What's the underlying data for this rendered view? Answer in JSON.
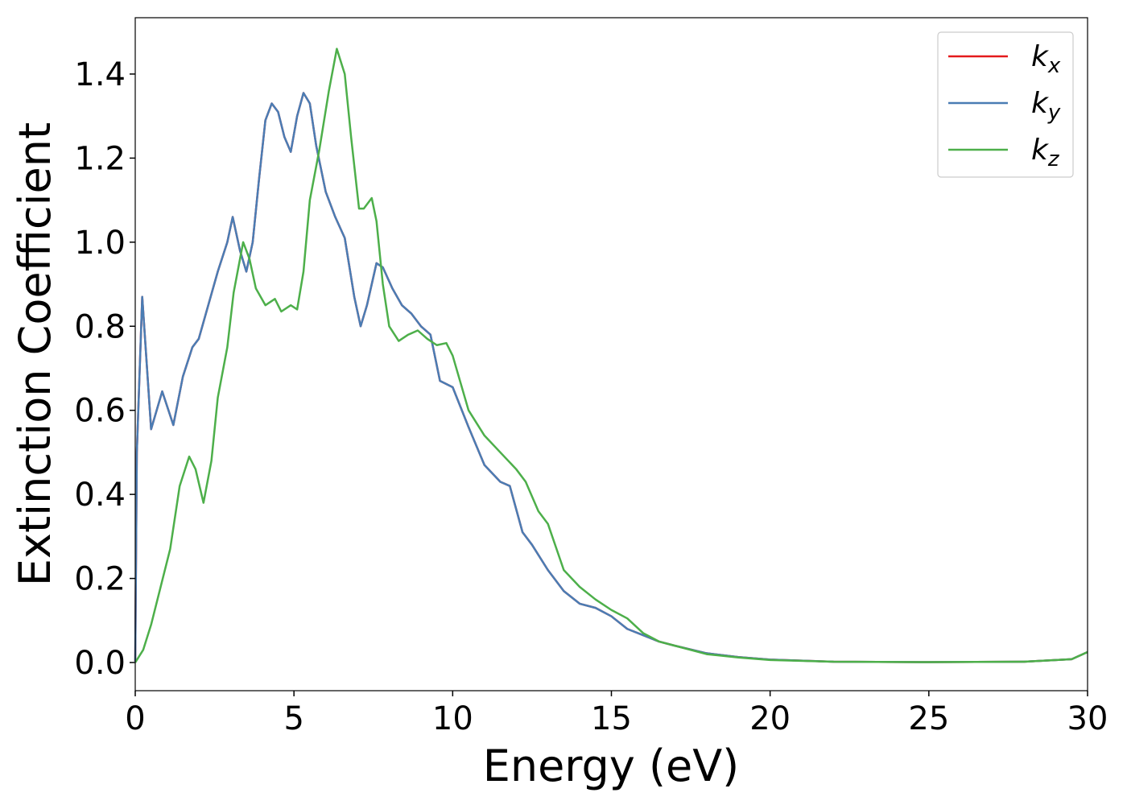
{
  "chart_data": {
    "type": "line",
    "xlabel": "Energy (eV)",
    "ylabel": "Extinction Coefficient",
    "xlim": [
      0,
      30
    ],
    "ylim": [
      -0.067,
      1.534
    ],
    "xticks": [
      0,
      5,
      10,
      15,
      20,
      25,
      30
    ],
    "yticks": [
      {
        "value": 0,
        "label": "0.0"
      },
      0.2,
      0.4,
      0.6,
      0.8,
      {
        "value": 1,
        "label": "1.0"
      },
      1.2,
      1.4
    ],
    "legend": "upper right",
    "series": [
      {
        "name": "kx",
        "color": "#e41a1c",
        "x": [
          0,
          0.05,
          0.22,
          0.5,
          0.85,
          1.2,
          1.5,
          1.8,
          2.0,
          2.3,
          2.6,
          2.9,
          3.07,
          3.3,
          3.5,
          3.7,
          3.9,
          4.1,
          4.3,
          4.5,
          4.7,
          4.9,
          5.1,
          5.3,
          5.5,
          5.7,
          6.0,
          6.3,
          6.6,
          6.9,
          7.1,
          7.3,
          7.6,
          7.8,
          8.1,
          8.4,
          8.7,
          9.0,
          9.3,
          9.6,
          10.0,
          10.5,
          11.0,
          11.5,
          11.8,
          12.2,
          12.5,
          13.0,
          13.5,
          14.0,
          14.5,
          15.0,
          15.5,
          16.0,
          16.5,
          17,
          18,
          19,
          20,
          22,
          25,
          28,
          29.5,
          30
        ],
        "values": [
          0,
          0.5,
          0.87,
          0.555,
          0.645,
          0.565,
          0.68,
          0.75,
          0.77,
          0.85,
          0.93,
          1.0,
          1.06,
          0.98,
          0.93,
          1.0,
          1.15,
          1.29,
          1.33,
          1.31,
          1.25,
          1.215,
          1.3,
          1.355,
          1.33,
          1.23,
          1.12,
          1.06,
          1.01,
          0.87,
          0.8,
          0.85,
          0.95,
          0.94,
          0.89,
          0.85,
          0.83,
          0.8,
          0.78,
          0.67,
          0.655,
          0.56,
          0.47,
          0.43,
          0.42,
          0.31,
          0.28,
          0.22,
          0.17,
          0.14,
          0.13,
          0.11,
          0.08,
          0.065,
          0.05,
          0.04,
          0.022,
          0.013,
          0.007,
          0.002,
          0.001,
          0.002,
          0.008,
          0.025
        ]
      },
      {
        "name": "ky",
        "color": "#4a7db4",
        "x": [
          0,
          0.05,
          0.22,
          0.5,
          0.85,
          1.2,
          1.5,
          1.8,
          2.0,
          2.3,
          2.6,
          2.9,
          3.07,
          3.3,
          3.5,
          3.7,
          3.9,
          4.1,
          4.3,
          4.5,
          4.7,
          4.9,
          5.1,
          5.3,
          5.5,
          5.7,
          6.0,
          6.3,
          6.6,
          6.9,
          7.1,
          7.3,
          7.6,
          7.8,
          8.1,
          8.4,
          8.7,
          9.0,
          9.3,
          9.6,
          10.0,
          10.5,
          11.0,
          11.5,
          11.8,
          12.2,
          12.5,
          13.0,
          13.5,
          14.0,
          14.5,
          15.0,
          15.5,
          16.0,
          16.5,
          17,
          18,
          19,
          20,
          22,
          25,
          28,
          29.5,
          30
        ],
        "values": [
          0,
          0.5,
          0.87,
          0.555,
          0.645,
          0.565,
          0.68,
          0.75,
          0.77,
          0.85,
          0.93,
          1.0,
          1.06,
          0.98,
          0.93,
          1.0,
          1.15,
          1.29,
          1.33,
          1.31,
          1.25,
          1.215,
          1.3,
          1.355,
          1.33,
          1.23,
          1.12,
          1.06,
          1.01,
          0.87,
          0.8,
          0.85,
          0.95,
          0.94,
          0.89,
          0.85,
          0.83,
          0.8,
          0.78,
          0.67,
          0.655,
          0.56,
          0.47,
          0.43,
          0.42,
          0.31,
          0.28,
          0.22,
          0.17,
          0.14,
          0.13,
          0.11,
          0.08,
          0.065,
          0.05,
          0.04,
          0.022,
          0.013,
          0.007,
          0.002,
          0.001,
          0.002,
          0.008,
          0.025
        ]
      },
      {
        "name": "kz",
        "color": "#4daf4a",
        "x": [
          0,
          0.25,
          0.5,
          0.8,
          1.1,
          1.4,
          1.7,
          1.9,
          2.15,
          2.4,
          2.6,
          2.9,
          3.1,
          3.4,
          3.6,
          3.8,
          4.1,
          4.4,
          4.6,
          4.9,
          5.1,
          5.3,
          5.5,
          5.8,
          6.1,
          6.35,
          6.6,
          6.8,
          7.05,
          7.2,
          7.45,
          7.6,
          7.8,
          8.0,
          8.3,
          8.6,
          8.9,
          9.2,
          9.5,
          9.8,
          10.0,
          10.5,
          11.0,
          11.5,
          12.0,
          12.3,
          12.7,
          13.0,
          13.5,
          14.0,
          14.5,
          15.0,
          15.5,
          16.0,
          16.5,
          17,
          18,
          19,
          20,
          22,
          25,
          28,
          29.5,
          30
        ],
        "values": [
          0,
          0.03,
          0.09,
          0.18,
          0.27,
          0.42,
          0.49,
          0.46,
          0.38,
          0.48,
          0.63,
          0.75,
          0.88,
          1.0,
          0.96,
          0.89,
          0.85,
          0.865,
          0.835,
          0.85,
          0.84,
          0.93,
          1.1,
          1.22,
          1.36,
          1.46,
          1.4,
          1.25,
          1.08,
          1.08,
          1.105,
          1.05,
          0.9,
          0.8,
          0.765,
          0.78,
          0.79,
          0.77,
          0.755,
          0.76,
          0.73,
          0.6,
          0.54,
          0.5,
          0.46,
          0.43,
          0.36,
          0.33,
          0.22,
          0.18,
          0.15,
          0.125,
          0.105,
          0.07,
          0.05,
          0.04,
          0.02,
          0.012,
          0.006,
          0.002,
          0.001,
          0.002,
          0.008,
          0.025
        ]
      }
    ]
  }
}
